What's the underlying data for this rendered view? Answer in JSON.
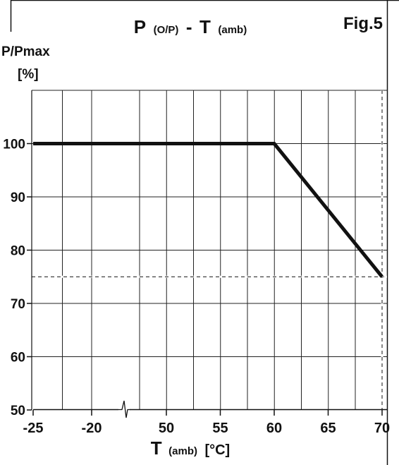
{
  "chart_data": {
    "type": "line",
    "title": {
      "p": "P",
      "p_sub": "(O/P)",
      "dash": "-",
      "t": "T",
      "t_sub": "(amb)"
    },
    "figure_label": "Fig.5",
    "ylabel": "P/Pmax",
    "yunit": "[%]",
    "xlabel": {
      "main": "T",
      "sub": "(amb)",
      "unit": "[°C]"
    },
    "x_ticks": [
      "-25",
      "-20",
      "50",
      "55",
      "60",
      "65",
      "70"
    ],
    "y_ticks": [
      "50",
      "60",
      "70",
      "80",
      "90",
      "100"
    ],
    "ylim": [
      50,
      110
    ],
    "axis_break": "between -20 and 50",
    "grid": true,
    "series": [
      {
        "x": [
          -25,
          60,
          70
        ],
        "y": [
          100,
          100,
          75
        ]
      }
    ],
    "reference_lines": [
      {
        "axis": "y",
        "value": 75,
        "style": "dashed"
      },
      {
        "axis": "x",
        "value": 70,
        "style": "dashed"
      }
    ]
  },
  "colors": {
    "line": "#111111",
    "grid": "#222222",
    "background": "#ffffff"
  }
}
